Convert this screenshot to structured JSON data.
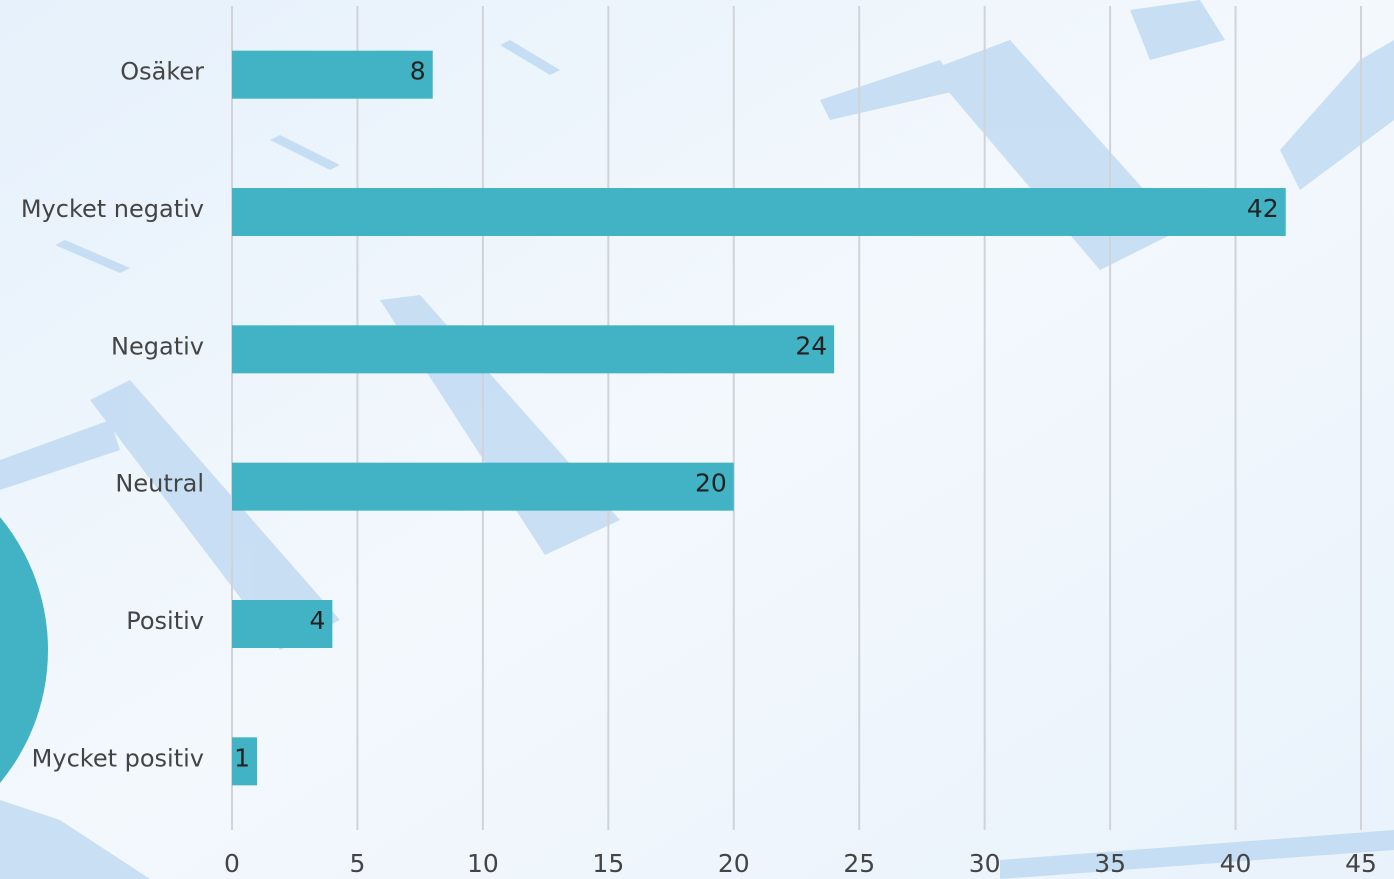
{
  "chart_data": {
    "type": "barh",
    "categories": [
      "Osäker",
      "Mycket negativ",
      "Negativ",
      "Neutral",
      "Positiv",
      "Mycket positiv"
    ],
    "values": [
      8,
      42,
      24,
      20,
      4,
      1
    ],
    "color": "#41b3c5",
    "xlim": [
      0,
      45
    ],
    "xticks": [
      0,
      5,
      10,
      15,
      20,
      25,
      30,
      35,
      40,
      45
    ],
    "grid": true
  }
}
